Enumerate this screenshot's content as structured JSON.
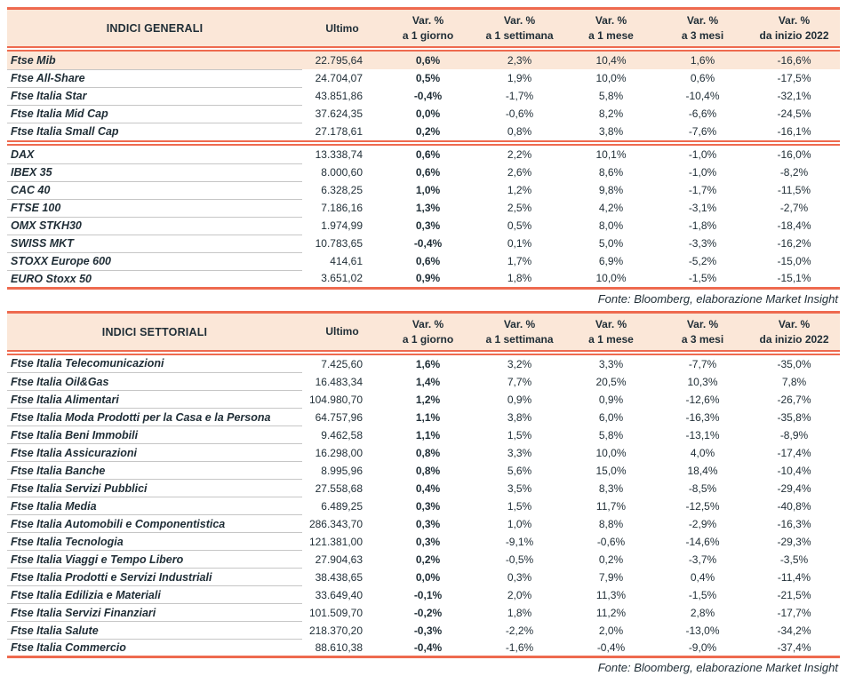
{
  "colors": {
    "accent": "#EE6A4F",
    "header_bg": "#FBE7D8",
    "highlight_bg": "#FBE7D8",
    "text": "#1F2D36",
    "separator": "#C6C6C6"
  },
  "tables": [
    {
      "title": "INDICI GENERALI",
      "columns": [
        {
          "l1": "Ultimo",
          "l2": ""
        },
        {
          "l1": "Var. %",
          "l2": "a 1 giorno"
        },
        {
          "l1": "Var. %",
          "l2": "a 1 settimana"
        },
        {
          "l1": "Var. %",
          "l2": "a 1 mese"
        },
        {
          "l1": "Var. %",
          "l2": "a 3 mesi"
        },
        {
          "l1": "Var. %",
          "l2": "da inizio 2022"
        }
      ],
      "groups": [
        {
          "rows": [
            {
              "name": "Ftse Mib",
              "ultimo": "22.795,64",
              "vals": [
                "0,6%",
                "2,3%",
                "10,4%",
                "1,6%",
                "-16,6%"
              ],
              "highlight": true
            },
            {
              "name": "Ftse All-Share",
              "ultimo": "24.704,07",
              "vals": [
                "0,5%",
                "1,9%",
                "10,0%",
                "0,6%",
                "-17,5%"
              ]
            },
            {
              "name": "Ftse Italia Star",
              "ultimo": "43.851,86",
              "vals": [
                "-0,4%",
                "-1,7%",
                "5,8%",
                "-10,4%",
                "-32,1%"
              ]
            },
            {
              "name": "Ftse Italia Mid Cap",
              "ultimo": "37.624,35",
              "vals": [
                "0,0%",
                "-0,6%",
                "8,2%",
                "-6,6%",
                "-24,5%"
              ]
            },
            {
              "name": "Ftse Italia Small Cap",
              "ultimo": "27.178,61",
              "vals": [
                "0,2%",
                "0,8%",
                "3,8%",
                "-7,6%",
                "-16,1%"
              ]
            }
          ]
        },
        {
          "rows": [
            {
              "name": "DAX",
              "ultimo": "13.338,74",
              "vals": [
                "0,6%",
                "2,2%",
                "10,1%",
                "-1,0%",
                "-16,0%"
              ]
            },
            {
              "name": "IBEX 35",
              "ultimo": "8.000,60",
              "vals": [
                "0,6%",
                "2,6%",
                "8,6%",
                "-1,0%",
                "-8,2%"
              ]
            },
            {
              "name": "CAC 40",
              "ultimo": "6.328,25",
              "vals": [
                "1,0%",
                "1,2%",
                "9,8%",
                "-1,7%",
                "-11,5%"
              ]
            },
            {
              "name": "FTSE 100",
              "ultimo": "7.186,16",
              "vals": [
                "1,3%",
                "2,5%",
                "4,2%",
                "-3,1%",
                "-2,7%"
              ]
            },
            {
              "name": "OMX STKH30",
              "ultimo": "1.974,99",
              "vals": [
                "0,3%",
                "0,5%",
                "8,0%",
                "-1,8%",
                "-18,4%"
              ]
            },
            {
              "name": "SWISS MKT",
              "ultimo": "10.783,65",
              "vals": [
                "-0,4%",
                "0,1%",
                "5,0%",
                "-3,3%",
                "-16,2%"
              ]
            },
            {
              "name": "STOXX Europe 600",
              "ultimo": "414,61",
              "vals": [
                "0,6%",
                "1,7%",
                "6,9%",
                "-5,2%",
                "-15,0%"
              ]
            },
            {
              "name": "EURO Stoxx 50",
              "ultimo": "3.651,02",
              "vals": [
                "0,9%",
                "1,8%",
                "10,0%",
                "-1,5%",
                "-15,1%"
              ]
            }
          ]
        }
      ],
      "source_note": "Fonte: Bloomberg, elaborazione Market Insight"
    },
    {
      "title": "INDICI SETTORIALI",
      "columns": [
        {
          "l1": "Ultimo",
          "l2": ""
        },
        {
          "l1": "Var. %",
          "l2": "a 1 giorno"
        },
        {
          "l1": "Var. %",
          "l2": "a 1 settimana"
        },
        {
          "l1": "Var. %",
          "l2": "a 1 mese"
        },
        {
          "l1": "Var. %",
          "l2": "a 3 mesi"
        },
        {
          "l1": "Var. %",
          "l2": "da inizio 2022"
        }
      ],
      "groups": [
        {
          "rows": [
            {
              "name": "Ftse Italia Telecomunicazioni",
              "ultimo": "7.425,60",
              "vals": [
                "1,6%",
                "3,2%",
                "3,3%",
                "-7,7%",
                "-35,0%"
              ]
            },
            {
              "name": "Ftse Italia Oil&Gas",
              "ultimo": "16.483,34",
              "vals": [
                "1,4%",
                "7,7%",
                "20,5%",
                "10,3%",
                "7,8%"
              ]
            },
            {
              "name": "Ftse Italia Alimentari",
              "ultimo": "104.980,70",
              "vals": [
                "1,2%",
                "0,9%",
                "0,9%",
                "-12,6%",
                "-26,7%"
              ]
            },
            {
              "name": "Ftse Italia Moda Prodotti per la Casa e la Persona",
              "ultimo": "64.757,96",
              "vals": [
                "1,1%",
                "3,8%",
                "6,0%",
                "-16,3%",
                "-35,8%"
              ]
            },
            {
              "name": "Ftse Italia Beni Immobili",
              "ultimo": "9.462,58",
              "vals": [
                "1,1%",
                "1,5%",
                "5,8%",
                "-13,1%",
                "-8,9%"
              ]
            },
            {
              "name": "Ftse Italia Assicurazioni",
              "ultimo": "16.298,00",
              "vals": [
                "0,8%",
                "3,3%",
                "10,0%",
                "4,0%",
                "-17,4%"
              ]
            },
            {
              "name": "Ftse Italia Banche",
              "ultimo": "8.995,96",
              "vals": [
                "0,8%",
                "5,6%",
                "15,0%",
                "18,4%",
                "-10,4%"
              ]
            },
            {
              "name": "Ftse Italia Servizi Pubblici",
              "ultimo": "27.558,68",
              "vals": [
                "0,4%",
                "3,5%",
                "8,3%",
                "-8,5%",
                "-29,4%"
              ]
            },
            {
              "name": "Ftse Italia Media",
              "ultimo": "6.489,25",
              "vals": [
                "0,3%",
                "1,5%",
                "11,7%",
                "-12,5%",
                "-40,8%"
              ]
            },
            {
              "name": "Ftse Italia Automobili e Componentistica",
              "ultimo": "286.343,70",
              "vals": [
                "0,3%",
                "1,0%",
                "8,8%",
                "-2,9%",
                "-16,3%"
              ]
            },
            {
              "name": "Ftse Italia Tecnologia",
              "ultimo": "121.381,00",
              "vals": [
                "0,3%",
                "-9,1%",
                "-0,6%",
                "-14,6%",
                "-29,3%"
              ]
            },
            {
              "name": "Ftse Italia Viaggi e Tempo Libero",
              "ultimo": "27.904,63",
              "vals": [
                "0,2%",
                "-0,5%",
                "0,2%",
                "-3,7%",
                "-3,5%"
              ]
            },
            {
              "name": "Ftse Italia Prodotti e Servizi Industriali",
              "ultimo": "38.438,65",
              "vals": [
                "0,0%",
                "0,3%",
                "7,9%",
                "0,4%",
                "-11,4%"
              ]
            },
            {
              "name": "Ftse Italia Edilizia e Materiali",
              "ultimo": "33.649,40",
              "vals": [
                "-0,1%",
                "2,0%",
                "11,3%",
                "-1,5%",
                "-21,5%"
              ]
            },
            {
              "name": "Ftse Italia Servizi Finanziari",
              "ultimo": "101.509,70",
              "vals": [
                "-0,2%",
                "1,8%",
                "11,2%",
                "2,8%",
                "-17,7%"
              ]
            },
            {
              "name": "Ftse Italia Salute",
              "ultimo": "218.370,20",
              "vals": [
                "-0,3%",
                "-2,2%",
                "2,0%",
                "-13,0%",
                "-34,2%"
              ]
            },
            {
              "name": "Ftse Italia Commercio",
              "ultimo": "88.610,38",
              "vals": [
                "-0,4%",
                "-1,6%",
                "-0,4%",
                "-9,0%",
                "-37,4%"
              ]
            }
          ]
        }
      ],
      "source_note": "Fonte: Bloomberg, elaborazione Market Insight"
    }
  ]
}
